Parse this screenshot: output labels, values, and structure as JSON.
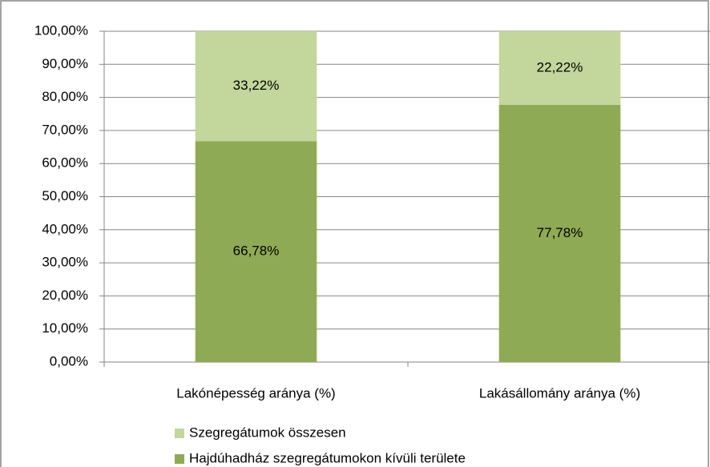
{
  "chart_data": {
    "type": "stacked_bar",
    "categories": [
      "Lakónépesség aránya (%)",
      "Lakásállomány aránya (%)"
    ],
    "series": [
      {
        "name": "Hajdúhadház szegregátumokon kívüli területe",
        "color": "#8faa54",
        "values": [
          66.78,
          77.78
        ],
        "value_labels": [
          "66,78%",
          "77,78%"
        ]
      },
      {
        "name": "Szegregátumok összesen",
        "color": "#c3d69b",
        "values": [
          33.22,
          22.22
        ],
        "value_labels": [
          "33,22%",
          "22,22%"
        ]
      }
    ],
    "ylim": [
      0,
      100
    ],
    "yticks": [
      {
        "value": 0,
        "label": "0,00%"
      },
      {
        "value": 10,
        "label": "10,00%"
      },
      {
        "value": 20,
        "label": "20,00%"
      },
      {
        "value": 30,
        "label": "30,00%"
      },
      {
        "value": 40,
        "label": "40,00%"
      },
      {
        "value": 50,
        "label": "50,00%"
      },
      {
        "value": 60,
        "label": "60,00%"
      },
      {
        "value": 70,
        "label": "70,00%"
      },
      {
        "value": 80,
        "label": "80,00%"
      },
      {
        "value": 90,
        "label": "90,00%"
      },
      {
        "value": 100,
        "label": "100,00%"
      }
    ],
    "grid": true,
    "legend": "bottom"
  }
}
